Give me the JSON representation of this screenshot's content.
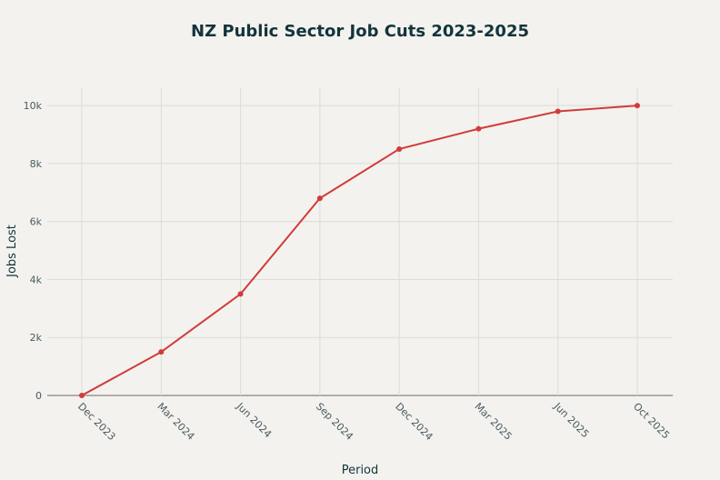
{
  "chart_data": {
    "type": "line",
    "title": "NZ Public Sector Job Cuts 2023-2025",
    "xlabel": "Period",
    "ylabel": "Jobs Lost",
    "categories": [
      "Dec 2023",
      "Mar 2024",
      "Jun 2024",
      "Sep 2024",
      "Dec 2024",
      "Mar 2025",
      "Jun 2025",
      "Oct 2025"
    ],
    "values": [
      0,
      1500,
      3500,
      6800,
      8500,
      9200,
      9800,
      10000
    ],
    "ylim": [
      0,
      10600
    ],
    "yticks": [
      0,
      2000,
      4000,
      6000,
      8000,
      10000
    ],
    "ytick_labels": [
      "0",
      "2k",
      "4k",
      "6k",
      "8k",
      "10k"
    ],
    "grid": true,
    "legend": "none",
    "colors": {
      "line": "#d13b3b",
      "grid": "#dcdcd6",
      "zero_line": "#6b6b6b",
      "background": "#f3f2ee",
      "text": "#13343b"
    }
  }
}
